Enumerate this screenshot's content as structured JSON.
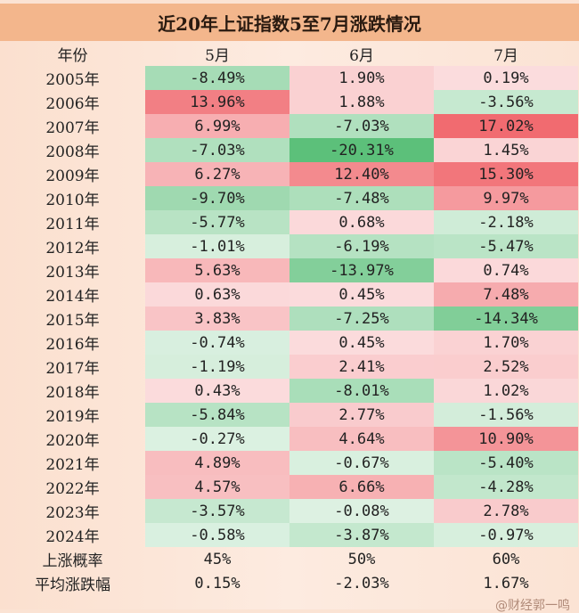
{
  "title": "近20年上证指数5至7月涨跌情况",
  "headers": [
    "年份",
    "5月",
    "6月",
    "7月"
  ],
  "rows": [
    {
      "year": "2005年",
      "values": [
        "-8.49%",
        "1.90%",
        "0.19%"
      ]
    },
    {
      "year": "2006年",
      "values": [
        "13.96%",
        "1.88%",
        "-3.56%"
      ]
    },
    {
      "year": "2007年",
      "values": [
        "6.99%",
        "-7.03%",
        "17.02%"
      ]
    },
    {
      "year": "2008年",
      "values": [
        "-7.03%",
        "-20.31%",
        "1.45%"
      ]
    },
    {
      "year": "2009年",
      "values": [
        "6.27%",
        "12.40%",
        "15.30%"
      ]
    },
    {
      "year": "2010年",
      "values": [
        "-9.70%",
        "-7.48%",
        "9.97%"
      ]
    },
    {
      "year": "2011年",
      "values": [
        "-5.77%",
        "0.68%",
        "-2.18%"
      ]
    },
    {
      "year": "2012年",
      "values": [
        "-1.01%",
        "-6.19%",
        "-5.47%"
      ]
    },
    {
      "year": "2013年",
      "values": [
        "5.63%",
        "-13.97%",
        "0.74%"
      ]
    },
    {
      "year": "2014年",
      "values": [
        "0.63%",
        "0.45%",
        "7.48%"
      ]
    },
    {
      "year": "2015年",
      "values": [
        "3.83%",
        "-7.25%",
        "-14.34%"
      ]
    },
    {
      "year": "2016年",
      "values": [
        "-0.74%",
        "0.45%",
        "1.70%"
      ]
    },
    {
      "year": "2017年",
      "values": [
        "-1.19%",
        "2.41%",
        "2.52%"
      ]
    },
    {
      "year": "2018年",
      "values": [
        "0.43%",
        "-8.01%",
        "1.02%"
      ]
    },
    {
      "year": "2019年",
      "values": [
        "-5.84%",
        "2.77%",
        "-1.56%"
      ]
    },
    {
      "year": "2020年",
      "values": [
        "-0.27%",
        "4.64%",
        "10.90%"
      ]
    },
    {
      "year": "2021年",
      "values": [
        "4.89%",
        "-0.67%",
        "-5.40%"
      ]
    },
    {
      "year": "2022年",
      "values": [
        "4.57%",
        "6.66%",
        "-4.28%"
      ]
    },
    {
      "year": "2023年",
      "values": [
        "-3.57%",
        "-0.08%",
        "2.78%"
      ]
    },
    {
      "year": "2024年",
      "values": [
        "-0.58%",
        "-3.87%",
        "-0.97%"
      ]
    }
  ],
  "summary": [
    {
      "label": "上涨概率",
      "values": [
        "45%",
        "50%",
        "60%"
      ]
    },
    {
      "label": "平均涨跌幅",
      "values": [
        "0.15%",
        "-2.03%",
        "1.67%"
      ]
    }
  ],
  "colors": {
    "title_bg": "#f3b68c",
    "positive": "#f0646a",
    "negative": "#5cc07a"
  },
  "watermark": "@财经郭一鸣"
}
